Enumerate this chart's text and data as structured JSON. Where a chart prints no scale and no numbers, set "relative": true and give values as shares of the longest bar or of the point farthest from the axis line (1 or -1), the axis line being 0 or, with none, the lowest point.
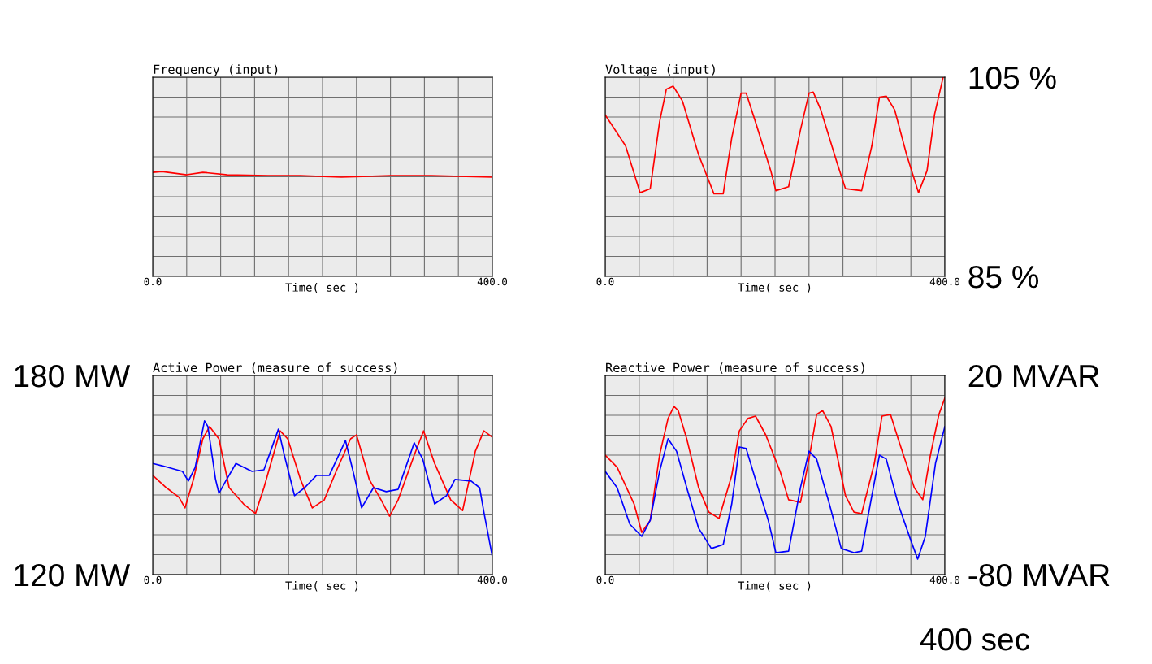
{
  "chart_data": [
    {
      "type": "line",
      "title": "Frequency (input)",
      "xlabel": "Time( sec )",
      "relative": true,
      "tick_labels": "x",
      "grid": true,
      "xlim": [
        0,
        400
      ],
      "xticks": [
        {
          "value": 0,
          "label": "0.0"
        },
        {
          "value": 40,
          "label": null
        },
        {
          "value": 80,
          "label": null
        },
        {
          "value": 120,
          "label": null
        },
        {
          "value": 160,
          "label": null
        },
        {
          "value": 200,
          "label": null
        },
        {
          "value": 240,
          "label": null
        },
        {
          "value": 280,
          "label": null
        },
        {
          "value": 320,
          "label": null
        },
        {
          "value": 360,
          "label": null
        },
        {
          "value": 400,
          "label": "400.0"
        }
      ],
      "series": [
        {
          "color": "#ff0000",
          "x": [
            0,
            11,
            40,
            59,
            88,
            136,
            174,
            222,
            280,
            328,
            400
          ],
          "values": [
            0.992,
            1.0,
            0.969,
            0.992,
            0.969,
            0.961,
            0.961,
            0.946,
            0.961,
            0.961,
            0.946
          ]
        }
      ]
    },
    {
      "type": "line",
      "title": "Voltage (input)",
      "xlabel": "Time( sec )",
      "grid": true,
      "xlim": [
        0,
        400
      ],
      "ylim": [
        85,
        105
      ],
      "xticks": [
        {
          "value": 0,
          "label": "0.0"
        },
        {
          "value": 40,
          "label": null
        },
        {
          "value": 80,
          "label": null
        },
        {
          "value": 120,
          "label": null
        },
        {
          "value": 160,
          "label": null
        },
        {
          "value": 200,
          "label": null
        },
        {
          "value": 240,
          "label": null
        },
        {
          "value": 280,
          "label": null
        },
        {
          "value": 320,
          "label": null
        },
        {
          "value": 360,
          "label": null
        },
        {
          "value": 400,
          "label": "400.0"
        }
      ],
      "yticks": [
        {
          "value": 85,
          "label": "85 %"
        },
        {
          "value": 87,
          "label": null
        },
        {
          "value": 89,
          "label": null
        },
        {
          "value": 91,
          "label": null
        },
        {
          "value": 93,
          "label": null
        },
        {
          "value": 95,
          "label": null
        },
        {
          "value": 97,
          "label": null
        },
        {
          "value": 99,
          "label": null
        },
        {
          "value": 101,
          "label": null
        },
        {
          "value": 103,
          "label": null
        },
        {
          "value": 105,
          "label": "105 %"
        }
      ],
      "series": [
        {
          "color": "#ff0000",
          "x": [
            0,
            24,
            41,
            53,
            64,
            72,
            80,
            91,
            110,
            128,
            139,
            149,
            160,
            166,
            177,
            195,
            201,
            216,
            230,
            240,
            245,
            254,
            273,
            283,
            302,
            314,
            323,
            331,
            341,
            355,
            369,
            379,
            388,
            398
          ],
          "values": [
            101.2,
            98.1,
            93.4,
            93.8,
            100.5,
            103.8,
            104.1,
            102.6,
            97.2,
            93.3,
            93.3,
            98.9,
            103.4,
            103.4,
            100.5,
            95.6,
            93.6,
            94.0,
            99.7,
            103.4,
            103.5,
            101.7,
            96.4,
            93.8,
            93.6,
            98.1,
            103.0,
            103.1,
            101.7,
            97.2,
            93.4,
            95.6,
            101.3,
            105.0
          ]
        }
      ]
    },
    {
      "type": "line",
      "title": "Active Power (measure of success)",
      "xlabel": "Time( sec )",
      "grid": true,
      "xlim": [
        0,
        400
      ],
      "ylim": [
        120,
        180
      ],
      "xticks": [
        {
          "value": 0,
          "label": "0.0"
        },
        {
          "value": 40,
          "label": null
        },
        {
          "value": 80,
          "label": null
        },
        {
          "value": 120,
          "label": null
        },
        {
          "value": 160,
          "label": null
        },
        {
          "value": 200,
          "label": null
        },
        {
          "value": 240,
          "label": null
        },
        {
          "value": 280,
          "label": null
        },
        {
          "value": 320,
          "label": null
        },
        {
          "value": 360,
          "label": null
        },
        {
          "value": 400,
          "label": "400.0"
        }
      ],
      "yticks": [
        {
          "value": 120,
          "label": "120 MW"
        },
        {
          "value": 126,
          "label": null
        },
        {
          "value": 132,
          "label": null
        },
        {
          "value": 138,
          "label": null
        },
        {
          "value": 144,
          "label": null
        },
        {
          "value": 150,
          "label": null
        },
        {
          "value": 156,
          "label": null
        },
        {
          "value": 162,
          "label": null
        },
        {
          "value": 168,
          "label": null
        },
        {
          "value": 174,
          "label": null
        },
        {
          "value": 180,
          "label": "180 MW"
        }
      ],
      "series": [
        {
          "color": "#ff0000",
          "x": [
            0,
            16,
            31,
            38,
            48,
            59,
            67,
            78,
            90,
            107,
            121,
            131,
            150,
            159,
            174,
            188,
            202,
            216,
            233,
            240,
            255,
            269,
            279,
            289,
            308,
            319,
            332,
            351,
            365,
            380,
            390,
            400
          ],
          "values": [
            149.9,
            146.2,
            143.3,
            140.1,
            148.7,
            160.9,
            164.6,
            160.9,
            146.2,
            141.3,
            138.4,
            146.2,
            163.3,
            160.9,
            148.7,
            140.1,
            142.5,
            151.1,
            160.9,
            162.1,
            148.7,
            142.5,
            137.6,
            142.5,
            156.0,
            163.3,
            153.5,
            142.5,
            139.3,
            157.2,
            163.3,
            161.4
          ]
        },
        {
          "color": "#0000ff",
          "x": [
            0,
            11,
            35,
            42,
            50,
            61,
            65,
            74,
            78,
            86,
            98,
            117,
            131,
            148,
            155,
            167,
            179,
            193,
            208,
            227,
            236,
            246,
            260,
            275,
            289,
            308,
            318,
            332,
            346,
            356,
            375,
            385,
            390,
            400
          ],
          "values": [
            153.5,
            152.8,
            151.1,
            148.2,
            152.3,
            166.3,
            164.6,
            148.7,
            144.5,
            148.2,
            153.5,
            151.1,
            151.6,
            163.8,
            156.0,
            143.8,
            146.2,
            149.9,
            149.9,
            160.4,
            151.1,
            140.1,
            146.2,
            145.0,
            145.7,
            159.7,
            154.8,
            141.3,
            143.8,
            148.7,
            148.2,
            146.2,
            138.9,
            125.4
          ]
        }
      ]
    },
    {
      "type": "line",
      "title": "Reactive Power (measure of success)",
      "xlabel": "Time( sec )",
      "grid": true,
      "xlim": [
        0,
        400
      ],
      "ylim": [
        -80,
        20
      ],
      "xticks": [
        {
          "value": 0,
          "label": "0.0"
        },
        {
          "value": 40,
          "label": null
        },
        {
          "value": 80,
          "label": null
        },
        {
          "value": 120,
          "label": null
        },
        {
          "value": 160,
          "label": null
        },
        {
          "value": 200,
          "label": null
        },
        {
          "value": 240,
          "label": null
        },
        {
          "value": 280,
          "label": null
        },
        {
          "value": 320,
          "label": null
        },
        {
          "value": 360,
          "label": null
        },
        {
          "value": 400,
          "label": "400.0"
        }
      ],
      "yticks": [
        {
          "value": -80,
          "label": "-80 MVAR"
        },
        {
          "value": -70,
          "label": null
        },
        {
          "value": -60,
          "label": null
        },
        {
          "value": -50,
          "label": null
        },
        {
          "value": -40,
          "label": null
        },
        {
          "value": -30,
          "label": null
        },
        {
          "value": -20,
          "label": null
        },
        {
          "value": -10,
          "label": null
        },
        {
          "value": 0,
          "label": null
        },
        {
          "value": 10,
          "label": null
        },
        {
          "value": 20,
          "label": "20 MVAR"
        }
      ],
      "annotations": [
        "400 sec"
      ],
      "series": [
        {
          "color": "#ff0000",
          "x": [
            0,
            14,
            34,
            43,
            53,
            64,
            74,
            81,
            86,
            96,
            110,
            122,
            134,
            149,
            158,
            168,
            177,
            189,
            206,
            216,
            230,
            240,
            249,
            256,
            266,
            283,
            293,
            302,
            317,
            326,
            336,
            345,
            364,
            374,
            383,
            393,
            400
          ],
          "values": [
            -20.0,
            -26.1,
            -44.5,
            -58.8,
            -52.7,
            -20.0,
            -1.6,
            4.5,
            2.4,
            -11.8,
            -36.3,
            -48.6,
            -51.8,
            -30.2,
            -7.8,
            -1.6,
            -0.4,
            -9.8,
            -28.2,
            -42.4,
            -43.7,
            -22.0,
            0.4,
            2.4,
            -5.7,
            -40.4,
            -48.6,
            -49.4,
            -24.1,
            -0.4,
            0.4,
            -11.8,
            -36.3,
            -42.4,
            -20.0,
            0.4,
            8.6
          ]
        },
        {
          "color": "#0000ff",
          "x": [
            0,
            14,
            29,
            43,
            53,
            64,
            74,
            84,
            96,
            110,
            125,
            139,
            149,
            158,
            166,
            177,
            192,
            201,
            216,
            230,
            240,
            249,
            264,
            278,
            293,
            302,
            314,
            323,
            331,
            345,
            360,
            368,
            377,
            389,
            400
          ],
          "values": [
            -28.2,
            -36.3,
            -54.7,
            -60.8,
            -52.7,
            -28.2,
            -11.8,
            -18.0,
            -36.3,
            -56.7,
            -66.9,
            -64.9,
            -44.5,
            -15.9,
            -16.7,
            -32.2,
            -52.7,
            -69.0,
            -68.2,
            -36.3,
            -18.0,
            -22.0,
            -44.5,
            -66.9,
            -69.0,
            -68.2,
            -40.4,
            -20.0,
            -22.0,
            -44.5,
            -62.9,
            -72.2,
            -60.8,
            -24.1,
            -5.7
          ]
        }
      ]
    }
  ]
}
